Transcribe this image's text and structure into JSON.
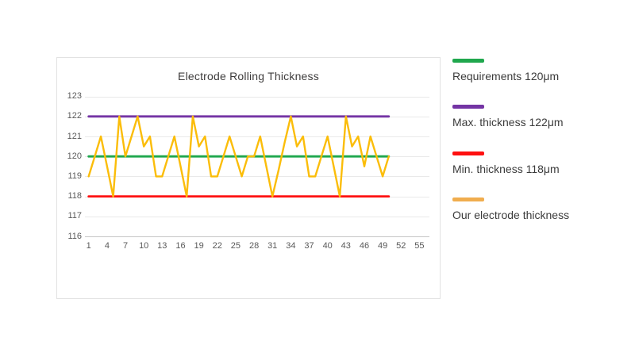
{
  "chart_card": {
    "title": "Electrode Rolling Thickness"
  },
  "legend": {
    "position": "right",
    "items": [
      {
        "label": "Requirements 120μm",
        "color": "#1fa74d"
      },
      {
        "label": "Max. thickness 122μm",
        "color": "#7434a4"
      },
      {
        "label": "Min. thickness 118μm",
        "color": "#fe1010"
      },
      {
        "label": "Our electrode thickness",
        "color": "#f0ad4e"
      }
    ]
  },
  "chart_data": {
    "type": "line",
    "title": "Electrode Rolling Thickness",
    "xlabel": "",
    "ylabel": "",
    "xlim": [
      1,
      55
    ],
    "ylim": [
      116,
      123
    ],
    "x_ticks": [
      1,
      4,
      7,
      10,
      13,
      16,
      19,
      22,
      25,
      28,
      31,
      34,
      37,
      40,
      43,
      46,
      49,
      52,
      55
    ],
    "y_ticks": [
      116,
      117,
      118,
      119,
      120,
      121,
      122,
      123
    ],
    "grid": true,
    "legend_position": "right",
    "series": [
      {
        "name": "Requirements 120μm",
        "kind": "constant",
        "value": 120,
        "x_start": 1,
        "x_end": 50,
        "color": "#1fa74d"
      },
      {
        "name": "Max. thickness 122μm",
        "kind": "constant",
        "value": 122,
        "x_start": 1,
        "x_end": 50,
        "color": "#7434a4"
      },
      {
        "name": "Min. thickness 118μm",
        "kind": "constant",
        "value": 118,
        "x_start": 1,
        "x_end": 50,
        "color": "#fe1010"
      },
      {
        "name": "Our electrode thickness",
        "kind": "values",
        "x_start": 1,
        "color": "#fbbd09",
        "values": [
          119,
          120,
          121,
          119.5,
          118,
          122,
          120,
          121,
          122,
          120.5,
          121,
          119,
          119,
          120,
          121,
          119.5,
          118,
          122,
          120.5,
          121,
          119,
          119,
          120,
          121,
          120,
          119,
          120,
          120,
          121,
          119.5,
          118,
          119.3,
          120.7,
          122,
          120.5,
          121,
          119,
          119,
          120,
          121,
          119.5,
          118,
          122,
          120.5,
          121,
          119.5,
          121,
          120,
          119,
          120
        ]
      }
    ]
  }
}
